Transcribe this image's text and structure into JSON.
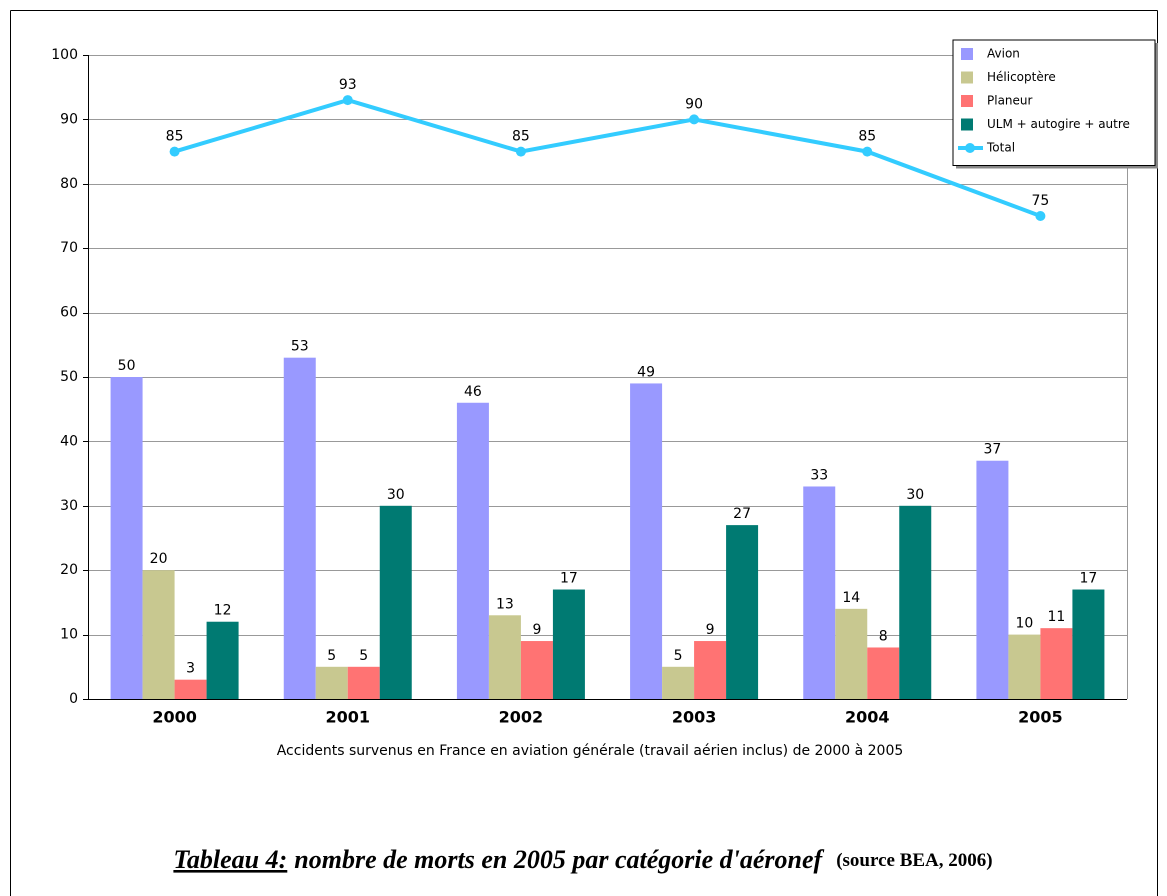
{
  "chart_data": {
    "type": "bar",
    "xlabel": "Accidents survenus en France en aviation générale (travail aérien inclus) de 2000 à 2005",
    "caption_label": "Tableau 4:",
    "caption": "nombre de morts en 2005 par catégorie d'aéronef",
    "source": "(source BEA, 2006)",
    "categories": [
      "2000",
      "2001",
      "2002",
      "2003",
      "2004",
      "2005"
    ],
    "series": [
      {
        "name": "Avion",
        "color": "#9999ff",
        "values": [
          50,
          53,
          46,
          49,
          33,
          37
        ]
      },
      {
        "name": "Hélicoptère",
        "color": "#c8c890",
        "values": [
          20,
          5,
          13,
          5,
          14,
          10
        ]
      },
      {
        "name": "Planeur",
        "color": "#ff7373",
        "values": [
          3,
          5,
          9,
          9,
          8,
          11
        ]
      },
      {
        "name": "ULM + autogire + autre",
        "color": "#007a72",
        "values": [
          12,
          30,
          17,
          27,
          30,
          17
        ]
      },
      {
        "name": "Total",
        "type": "line",
        "color": "#33ccff",
        "values": [
          85,
          93,
          85,
          90,
          85,
          75
        ]
      }
    ],
    "ylim": [
      0,
      100
    ],
    "yticks": [
      0,
      10,
      20,
      30,
      40,
      50,
      60,
      70,
      80,
      90,
      100
    ],
    "grid": true,
    "legend": "top right"
  }
}
